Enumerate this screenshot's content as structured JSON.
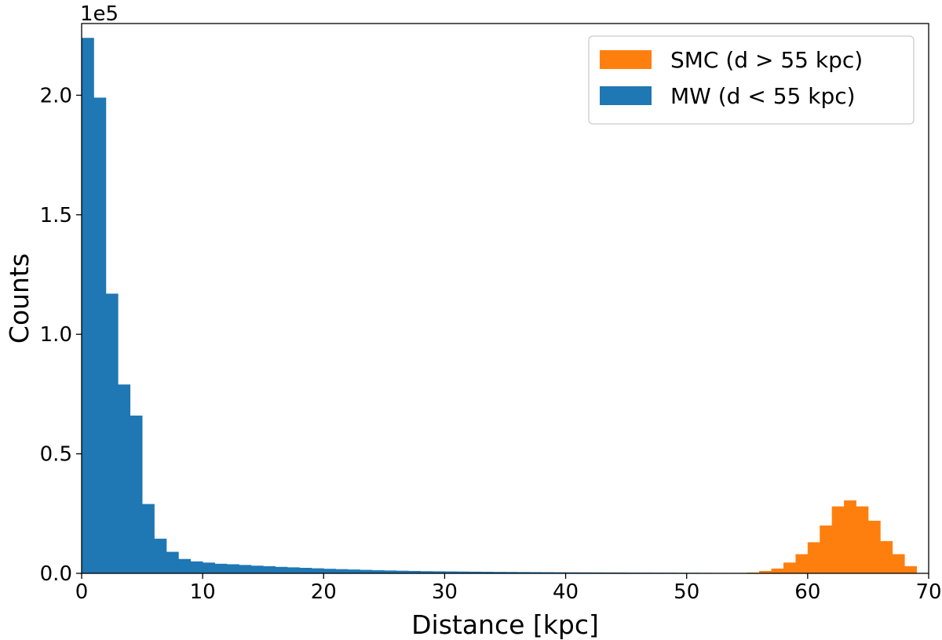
{
  "chart_data": {
    "type": "bar",
    "xlabel": "Distance [kpc]",
    "ylabel": "Counts",
    "offset_label": "1e5",
    "xlim": [
      0,
      70
    ],
    "ylim": [
      0,
      230000
    ],
    "xticks": [
      "0",
      "10",
      "20",
      "30",
      "40",
      "50",
      "60",
      "70"
    ],
    "xtick_values": [
      0,
      10,
      20,
      30,
      40,
      50,
      60,
      70
    ],
    "yticks": [
      "0.0",
      "0.5",
      "1.0",
      "1.5",
      "2.0"
    ],
    "ytick_values": [
      0,
      50000,
      100000,
      150000,
      200000
    ],
    "legend_position": "top-right",
    "grid": false,
    "series": [
      {
        "name": "SMC (d > 55 kpc)",
        "color": "#ff7f0e",
        "bin_start": 55,
        "bin_width": 1,
        "values": [
          300,
          1000,
          2000,
          4500,
          8000,
          13000,
          20000,
          28000,
          30500,
          28000,
          22000,
          13500,
          8000,
          3000
        ]
      },
      {
        "name": "MW (d < 55 kpc)",
        "color": "#1f77b4",
        "bin_start": 0,
        "bin_width": 1,
        "values": [
          224000,
          199000,
          117000,
          79000,
          66000,
          29000,
          14500,
          9000,
          6000,
          5000,
          4500,
          4000,
          3800,
          3500,
          3200,
          3000,
          2700,
          2500,
          2300,
          2100,
          1900,
          1750,
          1600,
          1450,
          1300,
          1200,
          1100,
          1000,
          900,
          850,
          800,
          750,
          700,
          650,
          600,
          570,
          540,
          510,
          480,
          450,
          420,
          400,
          380,
          360,
          340,
          320,
          300,
          280,
          260,
          240,
          220,
          200,
          180,
          160,
          150
        ]
      }
    ]
  }
}
